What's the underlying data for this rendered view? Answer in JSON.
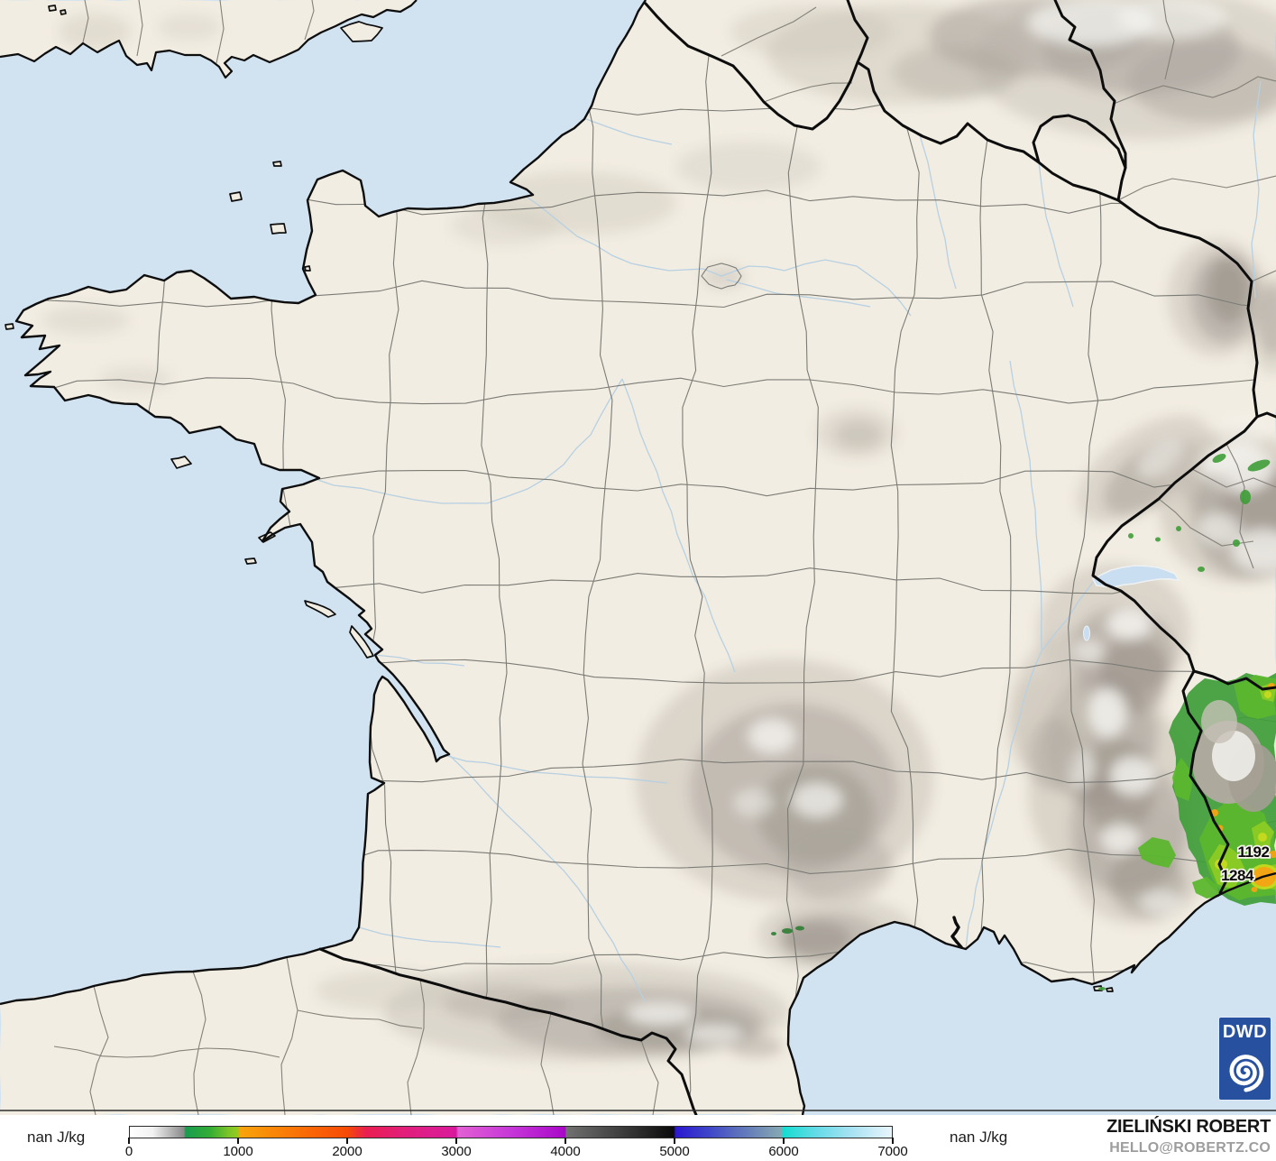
{
  "map": {
    "units_label": "J/kg",
    "cape_labels": [
      {
        "value": "1192"
      },
      {
        "value": "1284"
      }
    ]
  },
  "legend": {
    "left_unit_label": "nan J/kg",
    "right_unit_label": "nan J/kg",
    "min": 0,
    "max": 7000,
    "ticks": [
      {
        "label": "0",
        "value": 0
      },
      {
        "label": "1000",
        "value": 1000
      },
      {
        "label": "2000",
        "value": 2000
      },
      {
        "label": "3000",
        "value": 3000
      },
      {
        "label": "4000",
        "value": 4000
      },
      {
        "label": "5000",
        "value": 5000
      },
      {
        "label": "6000",
        "value": 6000
      },
      {
        "label": "7000",
        "value": 7000
      }
    ],
    "scale_stops": [
      [
        0,
        "#ffffff"
      ],
      [
        3,
        "#f1f1f1"
      ],
      [
        7.1,
        "#8a8a8a"
      ],
      [
        7.3,
        "#1a9b4e"
      ],
      [
        10.5,
        "#33ad35"
      ],
      [
        13,
        "#7dc528"
      ],
      [
        14.2,
        "#95cb20"
      ],
      [
        14.4,
        "#f7a50c"
      ],
      [
        18,
        "#fa8c08"
      ],
      [
        24,
        "#fa6406"
      ],
      [
        28.5,
        "#f74b06"
      ],
      [
        31,
        "#e91e50"
      ],
      [
        36,
        "#e21f7b"
      ],
      [
        42,
        "#da1a99"
      ],
      [
        42.8,
        "#d7189d"
      ],
      [
        43.1,
        "#e25fd3"
      ],
      [
        50,
        "#c637d8"
      ],
      [
        56.5,
        "#ac0cca"
      ],
      [
        57.1,
        "#a607c7"
      ],
      [
        57.3,
        "#717171"
      ],
      [
        64,
        "#414141"
      ],
      [
        70,
        "#141414"
      ],
      [
        71.4,
        "#0b0b0b"
      ],
      [
        71.6,
        "#2b18d0"
      ],
      [
        76,
        "#3f46c9"
      ],
      [
        80,
        "#5d72bc"
      ],
      [
        84,
        "#7c9ab4"
      ],
      [
        85.5,
        "#85a8b3"
      ],
      [
        85.7,
        "#15ddd1"
      ],
      [
        90,
        "#63dbe7"
      ],
      [
        95,
        "#abe3f4"
      ],
      [
        100,
        "#e9f5fd"
      ]
    ]
  },
  "branding": {
    "dwd_logo_text": "DWD",
    "author_name": "ZIELIŃSKI ROBERT",
    "author_contact": "HELLO@ROBERTZ.CO"
  },
  "colors": {
    "sea": "#d1e2f1",
    "land": "#f2ede2",
    "border_black": "#0d0d0d",
    "admin_gray": "#7b7b76",
    "river_blue": "#b7d0e2",
    "terrain_light": "#cbc5ba",
    "terrain_mid": "#a9a29b",
    "terrain_dark": "#8d867c",
    "terrain_snow": "#f7f6f2",
    "cape_green_dark": "#3f9d38",
    "cape_green_mid": "#5cb72e",
    "cape_green_light": "#8ccb25",
    "cape_yellow": "#c9da1e",
    "cape_orange": "#f6a313",
    "dwd_blue": "#27519e",
    "label_halo": "#f6f3ec"
  }
}
